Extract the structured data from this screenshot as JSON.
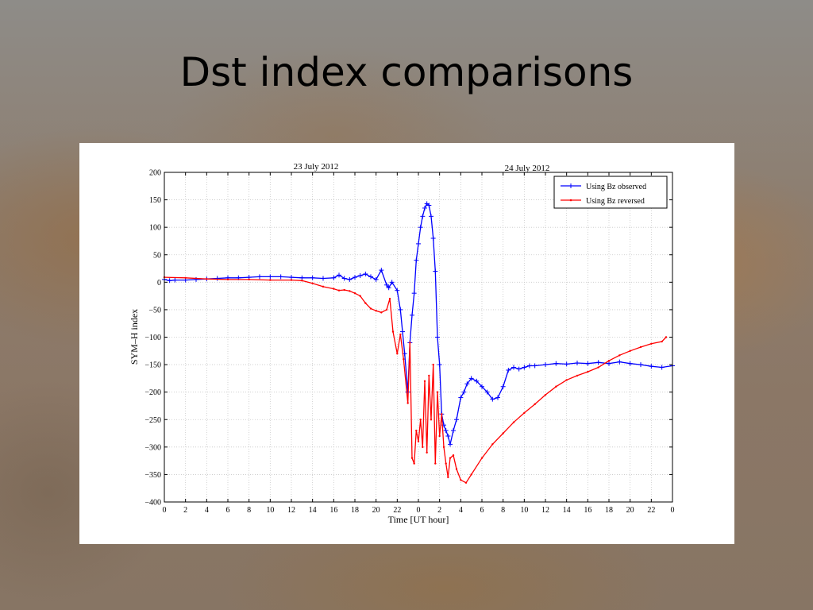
{
  "slide": {
    "title": "Dst index comparisons"
  },
  "chart_data": {
    "type": "line",
    "dates": [
      "23 July 2012",
      "24 July 2012"
    ],
    "xlabel": "Time [UT hour]",
    "ylabel": "SYM–H index",
    "xlim": [
      0,
      48
    ],
    "ylim": [
      -400,
      200
    ],
    "yticks": [
      200,
      150,
      100,
      50,
      0,
      -50,
      -100,
      -150,
      -200,
      -250,
      -300,
      -350,
      -400
    ],
    "xtick_labels": [
      "0",
      "2",
      "4",
      "6",
      "8",
      "10",
      "12",
      "14",
      "16",
      "18",
      "20",
      "22",
      "0",
      "2",
      "4",
      "6",
      "8",
      "10",
      "12",
      "14",
      "16",
      "18",
      "20",
      "22",
      "0"
    ],
    "grid": true,
    "legend_position": "top-right",
    "colors": {
      "observed": "#0000ff",
      "reversed": "#ff0000"
    },
    "series": [
      {
        "name": "Using Bz observed",
        "color": "#0000ff",
        "marker": "plus",
        "x": [
          0,
          0.5,
          1,
          2,
          3,
          4,
          5,
          6,
          7,
          8,
          9,
          10,
          11,
          12,
          13,
          14,
          15,
          16,
          16.5,
          17,
          17.5,
          18,
          18.5,
          19,
          19.5,
          20,
          20.5,
          21,
          21.2,
          21.5,
          22,
          22.3,
          22.5,
          22.7,
          23,
          23.2,
          23.4,
          23.6,
          23.8,
          24,
          24.2,
          24.4,
          24.6,
          24.8,
          25,
          25.2,
          25.4,
          25.6,
          25.8,
          26,
          26.2,
          26.4,
          26.6,
          26.8,
          27,
          27.3,
          27.6,
          28,
          28.3,
          28.6,
          29,
          29.5,
          30,
          30.5,
          31,
          31.5,
          32,
          32.5,
          33,
          33.5,
          34,
          34.5,
          35,
          36,
          37,
          38,
          39,
          40,
          41,
          42,
          43,
          44,
          45,
          46,
          47,
          48
        ],
        "y": [
          5,
          3,
          4,
          4,
          5,
          6,
          7,
          8,
          8,
          9,
          10,
          10,
          10,
          9,
          8,
          8,
          7,
          8,
          13,
          7,
          5,
          9,
          12,
          15,
          10,
          5,
          22,
          -5,
          -10,
          0,
          -15,
          -50,
          -90,
          -130,
          -200,
          -110,
          -60,
          -20,
          40,
          70,
          100,
          120,
          135,
          143,
          140,
          120,
          80,
          20,
          -100,
          -150,
          -240,
          -260,
          -270,
          -280,
          -295,
          -270,
          -250,
          -210,
          -200,
          -185,
          -175,
          -180,
          -190,
          -200,
          -213,
          -210,
          -190,
          -160,
          -155,
          -158,
          -155,
          -152,
          -152,
          -150,
          -148,
          -149,
          -147,
          -148,
          -146,
          -148,
          -145,
          -148,
          -150,
          -153,
          -155,
          -152
        ]
      },
      {
        "name": "Using Bz reversed",
        "color": "#ff0000",
        "marker": "dot",
        "x": [
          0,
          2,
          4,
          6,
          8,
          10,
          12,
          13,
          14,
          15,
          16,
          16.5,
          17,
          17.5,
          18,
          18.5,
          19,
          19.5,
          20,
          20.5,
          21,
          21.3,
          21.6,
          22,
          22.3,
          22.6,
          23,
          23.2,
          23.4,
          23.6,
          23.8,
          24,
          24.2,
          24.4,
          24.6,
          24.8,
          25,
          25.2,
          25.4,
          25.6,
          25.8,
          26,
          26.2,
          26.4,
          26.6,
          26.8,
          27,
          27.3,
          27.6,
          28,
          28.5,
          29,
          30,
          31,
          32,
          33,
          34,
          35,
          36,
          37,
          38,
          39,
          40,
          41,
          42,
          43,
          44,
          45,
          46,
          47,
          47.4
        ],
        "y": [
          9,
          8,
          6,
          5,
          5,
          4,
          4,
          3,
          -2,
          -8,
          -12,
          -15,
          -14,
          -16,
          -20,
          -25,
          -38,
          -48,
          -52,
          -55,
          -50,
          -30,
          -90,
          -130,
          -95,
          -140,
          -220,
          -110,
          -320,
          -330,
          -270,
          -290,
          -250,
          -300,
          -180,
          -310,
          -170,
          -250,
          -150,
          -330,
          -200,
          -280,
          -240,
          -300,
          -330,
          -355,
          -320,
          -315,
          -340,
          -360,
          -365,
          -350,
          -320,
          -295,
          -275,
          -255,
          -238,
          -222,
          -205,
          -190,
          -178,
          -170,
          -163,
          -155,
          -143,
          -133,
          -125,
          -118,
          -112,
          -108,
          -100
        ]
      }
    ]
  }
}
